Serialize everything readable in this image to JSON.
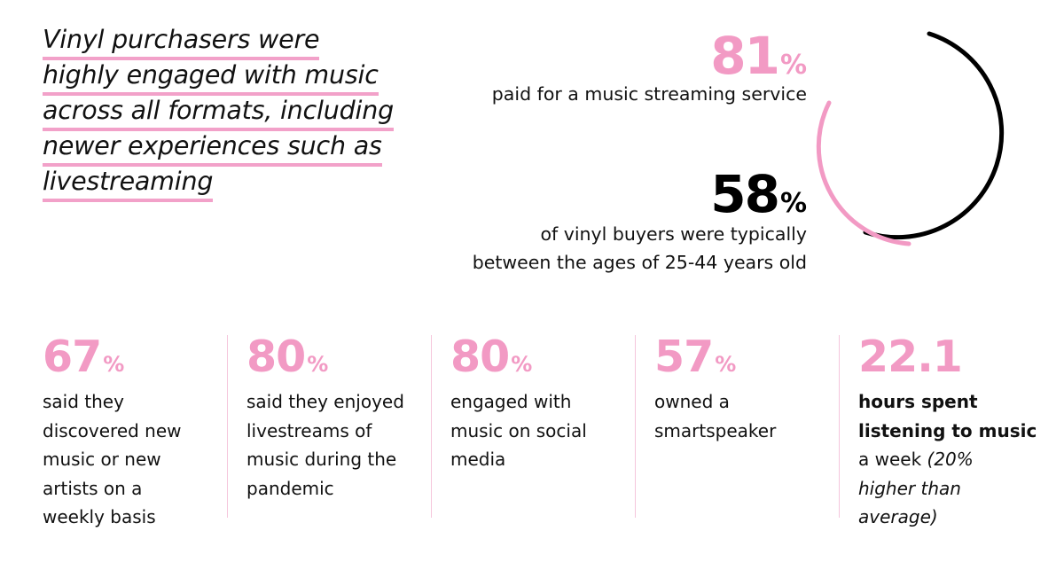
{
  "headline": {
    "lines": [
      "Vinyl purchasers were",
      "highly engaged with music",
      "across all formats, including",
      "newer experiences such as",
      "livestreaming"
    ]
  },
  "top_stats": [
    {
      "number": "81",
      "unit": "%",
      "label": "paid for a music streaming service"
    },
    {
      "number": "58",
      "unit": "%",
      "label_lines": [
        "of vinyl buyers were typically",
        "between the ages of 25-44 years old"
      ]
    }
  ],
  "bottom_stats": [
    {
      "number": "67",
      "unit": "%",
      "lines": [
        "said they",
        "discovered new",
        "music or new",
        "artists on a",
        "weekly basis"
      ]
    },
    {
      "number": "80",
      "unit": "%",
      "lines": [
        "said they enjoyed",
        "livestreams of",
        "music during the",
        "pandemic"
      ]
    },
    {
      "number": "80",
      "unit": "%",
      "lines": [
        "engaged with",
        "music on social",
        "media"
      ]
    },
    {
      "number": "57",
      "unit": "%",
      "lines": [
        "owned a",
        "smartspeaker"
      ]
    },
    {
      "number": "22.1",
      "unit": "",
      "bold_lines": [
        "hours spent",
        "listening to music"
      ],
      "plain": "a week",
      "italic_lines": [
        "(20%",
        "higher than",
        "average)"
      ]
    }
  ],
  "colors": {
    "pink": "#f29ac4",
    "black": "#000000",
    "rule": "#f2a1c9"
  }
}
